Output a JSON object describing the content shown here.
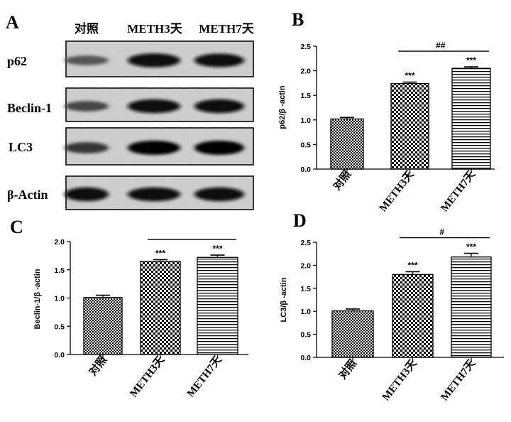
{
  "panel_a": {
    "letter": "A",
    "lanes": [
      "对照",
      "METH3天",
      "METH7天"
    ],
    "rows": [
      {
        "label": "p62",
        "band_intensity": [
          0.45,
          0.95,
          0.92
        ]
      },
      {
        "label": "Beclin-1",
        "band_intensity": [
          0.55,
          0.95,
          0.95
        ]
      },
      {
        "label": "LC3",
        "band_intensity": [
          0.65,
          1.0,
          1.0
        ]
      },
      {
        "label": "β-Actin",
        "band_intensity": [
          0.95,
          0.95,
          0.95
        ]
      }
    ]
  },
  "chart_data": [
    {
      "panel": "B",
      "type": "bar",
      "categories": [
        "对照",
        "METH3天",
        "METH7天"
      ],
      "values": [
        1.02,
        1.74,
        2.05
      ],
      "errors": [
        0.03,
        0.03,
        0.03
      ],
      "ylabel": "p62/β -actin",
      "ylim": [
        0,
        2.5
      ],
      "yticks": [
        "0.0",
        "0.5",
        "1.0",
        "1.5",
        "2.0",
        "2.5"
      ],
      "significance": [
        "",
        "***",
        "***"
      ],
      "comparison": {
        "from": 1,
        "to": 2,
        "label": "##"
      }
    },
    {
      "panel": "C",
      "type": "bar",
      "categories": [
        "对照",
        "METH3天",
        "METH7天"
      ],
      "values": [
        1.01,
        1.65,
        1.72
      ],
      "errors": [
        0.04,
        0.03,
        0.04
      ],
      "ylabel": "Beclin-1/β -actin",
      "ylim": [
        0,
        2.0
      ],
      "yticks": [
        "0.0",
        "0.5",
        "1.0",
        "1.5",
        "2.0"
      ],
      "significance": [
        "",
        "***",
        "***"
      ],
      "comparison": {
        "from": 1,
        "to": 2,
        "label": ""
      }
    },
    {
      "panel": "D",
      "type": "bar",
      "categories": [
        "对照",
        "METH3天",
        "METH7天"
      ],
      "values": [
        1.01,
        1.8,
        2.18
      ],
      "errors": [
        0.04,
        0.06,
        0.08
      ],
      "ylabel": "LC3/β -actin",
      "ylim": [
        0,
        2.5
      ],
      "yticks": [
        "0.0",
        "0.5",
        "1.0",
        "1.5",
        "2.0",
        "2.5"
      ],
      "significance": [
        "",
        "***",
        "***"
      ],
      "comparison": {
        "from": 1,
        "to": 2,
        "label": "#"
      }
    }
  ]
}
